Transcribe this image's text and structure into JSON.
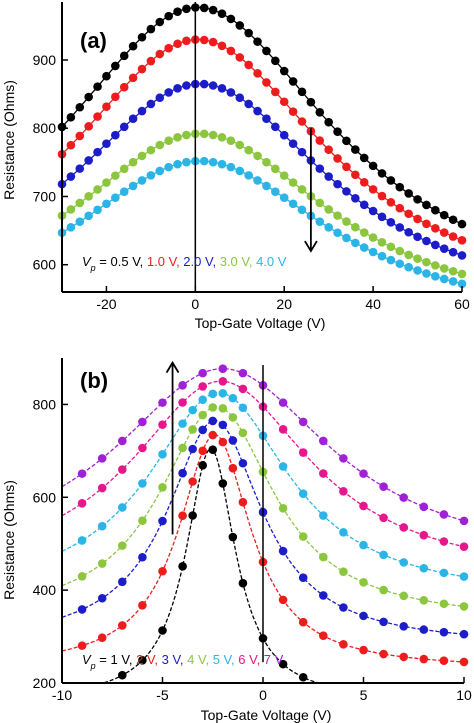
{
  "chart_data": [
    {
      "type": "line",
      "panel_label": "(a)",
      "xlabel": "Top-Gate Voltage (V)",
      "ylabel": "Resistance (Ohms)",
      "xlim": [
        -30,
        60
      ],
      "ylim": [
        560,
        985
      ],
      "xticks": [
        -20,
        0,
        20,
        40,
        60
      ],
      "xtick_labels": [
        "-20",
        "0",
        "20",
        "40",
        "60"
      ],
      "yticks": [
        600,
        700,
        800,
        900
      ],
      "ytick_labels": [
        "600",
        "700",
        "800",
        "900"
      ],
      "peak_marker_x": 0,
      "arrow": {
        "x": 26,
        "y_from": 800,
        "y_to": 620,
        "direction": "down"
      },
      "legend": {
        "symbol": "V",
        "subscript": "p",
        "prefix": " = ",
        "entries": [
          "0.5 V, ",
          "1.0 V, ",
          "2.0 V, ",
          "3.0 V, ",
          "4.0 V"
        ]
      },
      "series": [
        {
          "color": "#000000",
          "model": "lorentz",
          "center": 0.5,
          "base": 530,
          "amp": 447,
          "hw": 38,
          "x": [
            -30,
            -28,
            -26,
            -24,
            -22,
            -20,
            -18,
            -16,
            -14,
            -12,
            -10,
            -8,
            -6,
            -4,
            -2,
            0,
            2,
            4,
            6,
            8,
            10,
            12,
            14,
            16,
            18,
            20,
            22,
            24,
            26,
            28,
            30,
            32,
            34,
            36,
            38,
            40,
            42,
            44,
            46,
            48,
            50,
            52,
            54,
            56,
            58,
            60
          ]
        },
        {
          "color": "#ee1c1c",
          "model": "lorentz",
          "center": 0.5,
          "base": 528,
          "amp": 402,
          "hw": 36,
          "x": [
            -30,
            -28,
            -26,
            -24,
            -22,
            -20,
            -18,
            -16,
            -14,
            -12,
            -10,
            -8,
            -6,
            -4,
            -2,
            0,
            2,
            4,
            6,
            8,
            10,
            12,
            14,
            16,
            18,
            20,
            22,
            24,
            26,
            28,
            30,
            32,
            34,
            36,
            38,
            40,
            42,
            44,
            46,
            48,
            50,
            52,
            54,
            56,
            58,
            60
          ]
        },
        {
          "color": "#1c1cc8",
          "model": "lorentz",
          "center": 1.0,
          "base": 520,
          "amp": 345,
          "hw": 36,
          "x": [
            -30,
            -28,
            -26,
            -24,
            -22,
            -20,
            -18,
            -16,
            -14,
            -12,
            -10,
            -8,
            -6,
            -4,
            -2,
            0,
            2,
            4,
            6,
            8,
            10,
            12,
            14,
            16,
            18,
            20,
            22,
            24,
            26,
            28,
            30,
            32,
            34,
            36,
            38,
            40,
            42,
            44,
            46,
            48,
            50,
            52,
            54,
            56,
            58,
            60
          ]
        },
        {
          "color": "#8cc63f",
          "model": "lorentz",
          "center": 1.0,
          "base": 510,
          "amp": 282,
          "hw": 36,
          "x": [
            -30,
            -28,
            -26,
            -24,
            -22,
            -20,
            -18,
            -16,
            -14,
            -12,
            -10,
            -8,
            -6,
            -4,
            -2,
            0,
            2,
            4,
            6,
            8,
            10,
            12,
            14,
            16,
            18,
            20,
            22,
            24,
            26,
            28,
            30,
            32,
            34,
            36,
            38,
            40,
            42,
            44,
            46,
            48,
            50,
            52,
            54,
            56,
            58,
            60
          ]
        },
        {
          "color": "#2bb5e6",
          "model": "lorentz",
          "center": 1.0,
          "base": 505,
          "amp": 247,
          "hw": 36,
          "x": [
            -30,
            -28,
            -26,
            -24,
            -22,
            -20,
            -18,
            -16,
            -14,
            -12,
            -10,
            -8,
            -6,
            -4,
            -2,
            0,
            2,
            4,
            6,
            8,
            10,
            12,
            14,
            16,
            18,
            20,
            22,
            24,
            26,
            28,
            30,
            32,
            34,
            36,
            38,
            40,
            42,
            44,
            46,
            48,
            50,
            52,
            54,
            56,
            58,
            60
          ]
        }
      ]
    },
    {
      "type": "line",
      "panel_label": "(b)",
      "xlabel": "Top-Gate Voltage (V)",
      "ylabel": "Resistance (Ohms)",
      "xlim": [
        -10,
        10
      ],
      "ylim": [
        200,
        900
      ],
      "xticks": [
        -10,
        -5,
        0,
        5,
        10
      ],
      "xtick_labels": [
        "-10",
        "-5",
        "0",
        "5",
        "10"
      ],
      "yticks": [
        200,
        400,
        600,
        800
      ],
      "ytick_labels": [
        "200",
        "400",
        "600",
        "800"
      ],
      "peak_marker_x": 0,
      "arrow": {
        "x": -4.5,
        "y_from": 520,
        "y_to": 890,
        "direction": "up"
      },
      "legend": {
        "symbol": "V",
        "subscript": "p",
        "prefix": " = ",
        "entries": [
          "1 V, ",
          "2 V, ",
          "3 V, ",
          "4 V, ",
          "5 V, ",
          "6 V, ",
          "7 V"
        ]
      },
      "series": [
        {
          "color": "#000000",
          "model": "lorentz",
          "center": -2.6,
          "base": 160,
          "amp": 545,
          "hw": 1.5,
          "x": [
            -9,
            -8,
            -7,
            -6,
            -5,
            -4,
            -3.5,
            -3,
            -2.5,
            -2,
            -1.5,
            -1,
            0,
            1,
            2,
            3,
            4,
            5,
            6,
            7,
            8,
            9,
            10
          ]
        },
        {
          "color": "#ee1c1c",
          "model": "lorentz",
          "center": -2.4,
          "base": 230,
          "amp": 505,
          "hw": 2.2,
          "x": [
            -9,
            -8,
            -7,
            -6,
            -5,
            -4,
            -3.5,
            -3,
            -2.5,
            -2,
            -1.5,
            -1,
            0,
            1,
            2,
            3,
            4,
            5,
            6,
            7,
            8,
            9,
            10
          ]
        },
        {
          "color": "#1c1cc8",
          "model": "lorentz",
          "center": -2.4,
          "base": 280,
          "amp": 485,
          "hw": 2.9,
          "x": [
            -9,
            -8,
            -7,
            -6,
            -5,
            -4,
            -3.5,
            -3,
            -2.5,
            -2,
            -1.5,
            -1,
            0,
            1,
            2,
            3,
            4,
            5,
            6,
            7,
            8,
            9,
            10
          ]
        },
        {
          "color": "#8cc63f",
          "model": "lorentz",
          "center": -2.3,
          "base": 330,
          "amp": 465,
          "hw": 3.5,
          "x": [
            -9,
            -8,
            -7,
            -6,
            -5,
            -4,
            -3.5,
            -3,
            -2.5,
            -2,
            -1.5,
            -1,
            0,
            1,
            2,
            3,
            4,
            5,
            6,
            7,
            8,
            9,
            10
          ]
        },
        {
          "color": "#2bb5e6",
          "model": "lorentz",
          "center": -2.2,
          "base": 380,
          "amp": 445,
          "hw": 4.3,
          "x": [
            -9,
            -8,
            -7,
            -6,
            -5,
            -4,
            -3.5,
            -3,
            -2.5,
            -2,
            -1.5,
            -1,
            0,
            1,
            2,
            3,
            4,
            5,
            6,
            7,
            8,
            9,
            10
          ]
        },
        {
          "color": "#e8168c",
          "model": "lorentz",
          "center": -2.1,
          "base": 420,
          "amp": 430,
          "hw": 5.5,
          "x": [
            -9,
            -8,
            -7,
            -6,
            -5,
            -4,
            -3,
            -2,
            -1,
            0,
            1,
            2,
            3,
            4,
            5,
            6,
            7,
            8,
            9,
            10
          ]
        },
        {
          "color": "#a020d8",
          "model": "lorentz",
          "center": -2.0,
          "base": 450,
          "amp": 427,
          "hw": 6.6,
          "x": [
            -9,
            -8,
            -7,
            -6,
            -5,
            -4,
            -3,
            -2,
            -1,
            0,
            1,
            2,
            3,
            4,
            5,
            6,
            7,
            8,
            9,
            10
          ]
        }
      ]
    }
  ]
}
